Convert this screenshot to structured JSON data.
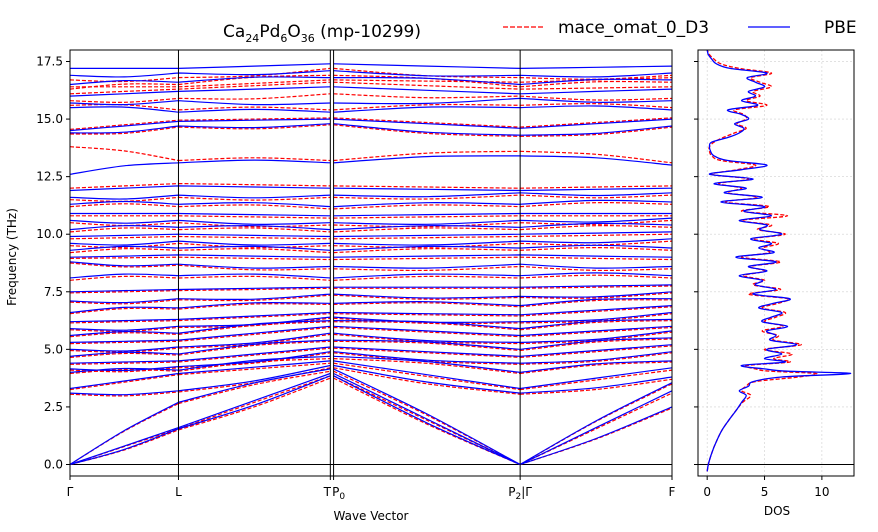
{
  "chart_data": [
    {
      "type": "line",
      "title": "Ca24Pd6O36 (mp-10299)",
      "title_parts": {
        "el1": "Ca",
        "n1": "24",
        "el2": "Pd",
        "n2": "6",
        "el3": "O",
        "n3": "36",
        "suffix": " (mp-10299)"
      },
      "xlabel": "Wave Vector",
      "ylabel": "Frequency (THz)",
      "ylim": [
        -0.5,
        18.0
      ],
      "yticks": [
        "0.0",
        "2.5",
        "5.0",
        "7.5",
        "10.0",
        "12.5",
        "15.0",
        "17.5"
      ],
      "ytick_values": [
        0.0,
        2.5,
        5.0,
        7.5,
        10.0,
        12.5,
        15.0,
        17.5
      ],
      "path_labels": [
        "Γ",
        "L",
        "T",
        "P0",
        "P2|Γ",
        "F"
      ],
      "path_positions": [
        0.0,
        1.0,
        2.4,
        2.43,
        4.15,
        5.55
      ],
      "legend": [
        {
          "name": "mace_omat_0_D3",
          "color": "#ff0000",
          "style": "dashed"
        },
        {
          "name": "PBE",
          "color": "#0000ff",
          "style": "solid"
        }
      ],
      "legend_position": "top-right",
      "grid": false,
      "series_colors": {
        "mace_omat_0_D3": "#ff0000",
        "PBE": "#0000ff"
      },
      "band_nodes": {
        "PBE": [
          [
            0,
            1.55,
            3.85,
            3.85,
            0,
            2.5
          ],
          [
            0,
            1.6,
            3.95,
            3.95,
            0,
            3.2
          ],
          [
            0,
            2.7,
            4.15,
            4.15,
            0,
            3.55
          ],
          [
            3.1,
            3.2,
            4.3,
            4.3,
            3.1,
            3.8
          ],
          [
            3.3,
            3.95,
            4.5,
            4.5,
            3.3,
            4.2
          ],
          [
            4.0,
            4.1,
            4.7,
            4.7,
            4.0,
            4.5
          ],
          [
            4.15,
            4.25,
            4.9,
            4.9,
            4.4,
            4.9
          ],
          [
            4.4,
            4.5,
            5.1,
            5.1,
            4.7,
            5.2
          ],
          [
            4.7,
            4.8,
            5.4,
            5.4,
            5.0,
            5.5
          ],
          [
            5.0,
            5.1,
            5.7,
            5.7,
            5.3,
            5.8
          ],
          [
            5.3,
            5.4,
            6.0,
            6.0,
            5.6,
            6.0
          ],
          [
            5.6,
            5.7,
            6.25,
            6.25,
            5.9,
            6.3
          ],
          [
            5.9,
            6.0,
            6.4,
            6.4,
            6.2,
            6.6
          ],
          [
            6.2,
            6.3,
            6.6,
            6.6,
            6.5,
            6.9
          ],
          [
            6.6,
            6.8,
            7.0,
            7.0,
            6.9,
            7.2
          ],
          [
            7.1,
            7.2,
            7.4,
            7.4,
            7.3,
            7.5
          ],
          [
            7.5,
            7.6,
            7.7,
            7.7,
            7.7,
            7.8
          ],
          [
            8.1,
            8.2,
            8.1,
            8.1,
            8.2,
            8.2
          ],
          [
            8.8,
            8.7,
            8.6,
            8.6,
            8.7,
            8.6
          ],
          [
            9.0,
            9.1,
            9.0,
            9.0,
            9.1,
            9.0
          ],
          [
            9.3,
            9.4,
            9.3,
            9.3,
            9.4,
            9.4
          ],
          [
            9.6,
            9.7,
            9.6,
            9.6,
            9.7,
            9.8
          ],
          [
            9.9,
            10.0,
            9.9,
            9.9,
            10.0,
            10.1
          ],
          [
            10.2,
            10.3,
            10.2,
            10.2,
            10.3,
            10.4
          ],
          [
            10.6,
            10.6,
            10.5,
            10.5,
            10.6,
            10.7
          ],
          [
            10.9,
            10.9,
            10.8,
            10.8,
            10.9,
            10.9
          ],
          [
            11.3,
            11.3,
            11.2,
            11.2,
            11.3,
            11.4
          ],
          [
            11.6,
            11.7,
            11.7,
            11.7,
            11.8,
            11.8
          ],
          [
            11.9,
            12.1,
            12.0,
            12.0,
            11.9,
            12.0
          ],
          [
            12.6,
            13.1,
            13.1,
            13.1,
            13.4,
            13.0
          ],
          [
            14.4,
            14.7,
            14.8,
            14.8,
            14.3,
            14.7
          ],
          [
            14.5,
            14.9,
            15.0,
            15.0,
            14.6,
            15.0
          ],
          [
            15.5,
            15.3,
            15.3,
            15.3,
            15.5,
            15.4
          ],
          [
            15.7,
            15.8,
            15.7,
            15.7,
            15.9,
            15.8
          ],
          [
            16.0,
            16.2,
            16.4,
            16.4,
            16.1,
            16.3
          ],
          [
            16.5,
            16.6,
            16.8,
            16.8,
            16.5,
            16.7
          ],
          [
            16.9,
            17.0,
            17.1,
            17.1,
            16.9,
            17.0
          ],
          [
            17.2,
            17.2,
            17.4,
            17.4,
            17.2,
            17.3
          ]
        ],
        "mace_omat_0_D3": [
          [
            0,
            1.5,
            3.75,
            3.75,
            0,
            2.45
          ],
          [
            0,
            1.55,
            3.85,
            3.85,
            0,
            3.1
          ],
          [
            0,
            2.65,
            4.05,
            4.05,
            0,
            3.5
          ],
          [
            3.05,
            3.15,
            4.2,
            4.2,
            3.05,
            3.7
          ],
          [
            3.25,
            3.9,
            4.4,
            4.4,
            3.25,
            4.1
          ],
          [
            3.95,
            4.05,
            4.6,
            4.6,
            3.95,
            4.45
          ],
          [
            4.1,
            4.2,
            4.85,
            4.85,
            4.35,
            4.85
          ],
          [
            4.35,
            4.45,
            5.05,
            5.05,
            4.65,
            5.15
          ],
          [
            4.65,
            4.75,
            5.35,
            5.35,
            4.95,
            5.45
          ],
          [
            4.95,
            5.05,
            5.65,
            5.65,
            5.25,
            5.75
          ],
          [
            5.25,
            5.35,
            5.95,
            5.95,
            5.55,
            5.95
          ],
          [
            5.55,
            5.65,
            6.2,
            6.2,
            5.85,
            6.25
          ],
          [
            5.85,
            5.95,
            6.35,
            6.35,
            6.15,
            6.55
          ],
          [
            6.15,
            6.25,
            6.55,
            6.55,
            6.45,
            6.85
          ],
          [
            6.55,
            6.75,
            6.95,
            6.95,
            6.85,
            7.15
          ],
          [
            7.05,
            7.15,
            7.35,
            7.35,
            7.25,
            7.45
          ],
          [
            7.45,
            7.55,
            7.65,
            7.65,
            7.65,
            7.75
          ],
          [
            8.0,
            8.1,
            8.0,
            8.0,
            8.1,
            8.1
          ],
          [
            8.75,
            8.65,
            8.5,
            8.5,
            8.6,
            8.5
          ],
          [
            8.95,
            9.0,
            8.9,
            8.9,
            9.0,
            8.9
          ],
          [
            9.2,
            9.3,
            9.2,
            9.2,
            9.3,
            9.3
          ],
          [
            9.5,
            9.6,
            9.5,
            9.5,
            9.6,
            9.7
          ],
          [
            9.8,
            9.9,
            9.8,
            9.8,
            9.9,
            10.0
          ],
          [
            10.1,
            10.2,
            10.1,
            10.1,
            10.2,
            10.3
          ],
          [
            10.5,
            10.5,
            10.4,
            10.4,
            10.5,
            10.6
          ],
          [
            10.8,
            10.8,
            10.7,
            10.7,
            10.8,
            10.8
          ],
          [
            11.2,
            11.2,
            11.1,
            11.1,
            11.2,
            11.3
          ],
          [
            11.5,
            11.6,
            11.6,
            11.6,
            11.7,
            11.7
          ],
          [
            12.0,
            12.2,
            12.1,
            12.1,
            12.0,
            12.1
          ],
          [
            13.8,
            13.2,
            13.2,
            13.2,
            13.6,
            13.1
          ],
          [
            14.35,
            14.65,
            14.75,
            14.75,
            14.25,
            14.65
          ],
          [
            14.55,
            14.95,
            15.05,
            15.05,
            14.65,
            15.05
          ],
          [
            15.6,
            15.4,
            15.4,
            15.4,
            15.6,
            15.5
          ],
          [
            15.8,
            15.9,
            16.1,
            16.1,
            16.0,
            15.9
          ],
          [
            16.1,
            16.3,
            16.6,
            16.6,
            16.3,
            16.4
          ],
          [
            16.3,
            16.5,
            16.9,
            16.9,
            16.4,
            16.6
          ],
          [
            16.7,
            16.8,
            17.2,
            17.2,
            16.8,
            16.9
          ],
          [
            16.4,
            16.4,
            16.7,
            16.7,
            16.6,
            16.8
          ]
        ]
      }
    },
    {
      "type": "line",
      "title": "",
      "xlabel": "DOS",
      "ylabel": "",
      "xlim": [
        -0.8,
        12.8
      ],
      "ylim": [
        -0.5,
        18.0
      ],
      "xticks": [
        "0",
        "5",
        "10"
      ],
      "xtick_values": [
        0,
        5,
        10
      ],
      "grid": true,
      "series": [
        {
          "name": "PBE",
          "color": "#0000ff",
          "frequency": [
            -0.3,
            0.0,
            0.5,
            1.0,
            1.5,
            2.0,
            2.4,
            2.7,
            3.0,
            3.2,
            3.4,
            3.6,
            3.8,
            3.95,
            4.05,
            4.15,
            4.3,
            4.45,
            4.6,
            4.8,
            5.0,
            5.2,
            5.4,
            5.6,
            5.8,
            6.0,
            6.2,
            6.4,
            6.6,
            6.8,
            7.0,
            7.2,
            7.4,
            7.6,
            7.8,
            8.0,
            8.2,
            8.4,
            8.6,
            8.8,
            9.0,
            9.2,
            9.4,
            9.6,
            9.8,
            10.0,
            10.2,
            10.4,
            10.6,
            10.8,
            11.0,
            11.2,
            11.4,
            11.6,
            11.8,
            12.0,
            12.2,
            12.4,
            12.6,
            12.8,
            13.0,
            13.2,
            13.4,
            13.6,
            13.8,
            14.0,
            14.2,
            14.4,
            14.6,
            14.8,
            15.0,
            15.2,
            15.4,
            15.6,
            15.8,
            16.0,
            16.2,
            16.4,
            16.6,
            16.8,
            17.0,
            17.2,
            17.4,
            17.6,
            17.8,
            18.0
          ],
          "dos": [
            0.0,
            0.1,
            0.4,
            0.8,
            1.3,
            2.0,
            2.6,
            3.0,
            3.4,
            2.8,
            3.6,
            4.0,
            6.5,
            12.5,
            7.0,
            5.0,
            3.0,
            6.8,
            5.0,
            6.5,
            5.2,
            7.8,
            5.5,
            6.0,
            5.2,
            7.0,
            4.8,
            5.6,
            6.5,
            4.5,
            5.8,
            7.2,
            4.0,
            6.0,
            4.2,
            4.8,
            2.8,
            5.2,
            3.6,
            6.0,
            2.5,
            5.8,
            4.5,
            5.6,
            3.8,
            6.5,
            4.6,
            5.2,
            2.8,
            5.6,
            3.2,
            5.0,
            1.2,
            4.8,
            1.5,
            3.4,
            0.6,
            4.0,
            0.2,
            3.0,
            5.2,
            1.8,
            0.6,
            0.3,
            0.2,
            0.4,
            1.8,
            2.8,
            3.2,
            2.4,
            3.6,
            3.0,
            1.8,
            4.4,
            3.0,
            4.2,
            3.6,
            5.0,
            4.2,
            3.5,
            5.2,
            2.0,
            0.8,
            0.4,
            0.1,
            0.0
          ]
        },
        {
          "name": "mace_omat_0_D3",
          "color": "#ff0000",
          "frequency": [
            -0.3,
            0.0,
            0.5,
            1.0,
            1.5,
            2.0,
            2.4,
            2.7,
            3.0,
            3.2,
            3.4,
            3.6,
            3.8,
            3.95,
            4.05,
            4.15,
            4.3,
            4.45,
            4.6,
            4.8,
            5.0,
            5.2,
            5.4,
            5.6,
            5.8,
            6.0,
            6.2,
            6.4,
            6.6,
            6.8,
            7.0,
            7.2,
            7.4,
            7.6,
            7.8,
            8.0,
            8.2,
            8.4,
            8.6,
            8.8,
            9.0,
            9.2,
            9.4,
            9.6,
            9.8,
            10.0,
            10.2,
            10.4,
            10.6,
            10.8,
            11.0,
            11.2,
            11.4,
            11.6,
            11.8,
            12.0,
            12.2,
            12.4,
            12.6,
            12.8,
            13.0,
            13.2,
            13.4,
            13.6,
            13.8,
            14.0,
            14.2,
            14.4,
            14.6,
            14.8,
            15.0,
            15.2,
            15.4,
            15.6,
            15.8,
            16.0,
            16.2,
            16.4,
            16.6,
            16.8,
            17.0,
            17.2,
            17.4,
            17.6,
            17.8,
            18.0
          ],
          "dos": [
            0.0,
            0.1,
            0.4,
            0.8,
            1.3,
            2.0,
            2.6,
            3.1,
            3.8,
            3.0,
            3.4,
            4.2,
            8.0,
            9.5,
            5.5,
            4.2,
            3.5,
            7.2,
            5.8,
            7.4,
            5.0,
            8.2,
            5.8,
            6.2,
            4.8,
            6.6,
            5.0,
            6.0,
            6.8,
            4.8,
            6.2,
            7.0,
            3.6,
            6.4,
            4.0,
            5.0,
            3.2,
            5.0,
            3.8,
            6.4,
            3.0,
            5.4,
            4.8,
            6.2,
            4.0,
            6.8,
            4.4,
            5.6,
            3.0,
            7.0,
            3.0,
            5.4,
            1.6,
            4.4,
            1.8,
            3.0,
            1.0,
            3.6,
            0.4,
            2.6,
            4.2,
            1.2,
            0.4,
            0.2,
            0.2,
            0.6,
            1.4,
            2.4,
            3.4,
            2.6,
            3.4,
            3.2,
            2.4,
            5.2,
            3.4,
            4.6,
            4.0,
            5.6,
            4.6,
            3.8,
            5.6,
            2.8,
            1.2,
            0.6,
            0.2,
            0.0
          ]
        }
      ]
    }
  ]
}
